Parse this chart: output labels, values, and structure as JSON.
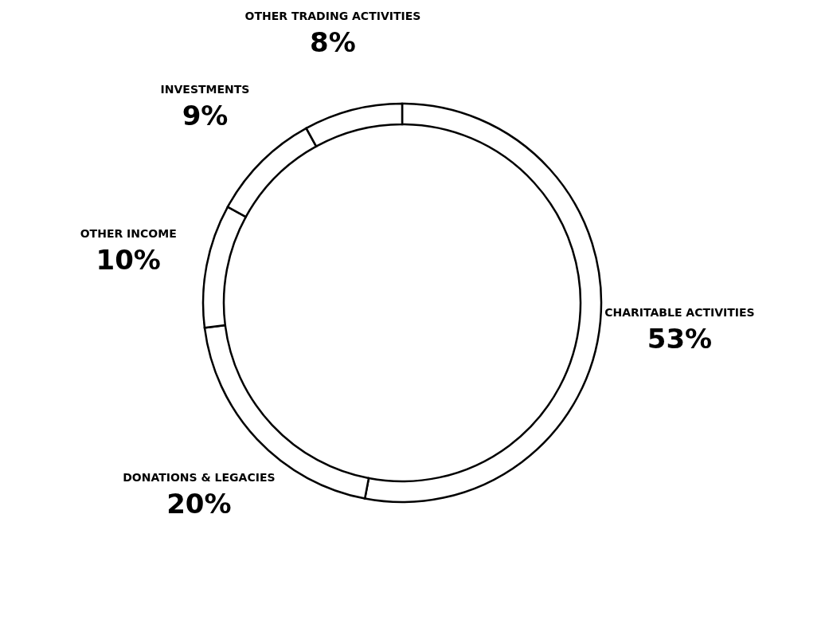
{
  "chart_data": {
    "type": "donut",
    "categories": [
      "CHARITABLE ACTIVITIES",
      "DONATIONS & LEGACIES",
      "OTHER INCOME",
      "INVESTMENTS",
      "OTHER TRADING ACTIVITIES"
    ],
    "values": [
      53,
      20,
      10,
      9,
      8
    ],
    "value_labels": [
      "53%",
      "20%",
      "10%",
      "9%",
      "8%"
    ],
    "colors": [
      "#ffffff",
      "#ffffff",
      "#ffffff",
      "#ffffff",
      "#ffffff"
    ]
  }
}
